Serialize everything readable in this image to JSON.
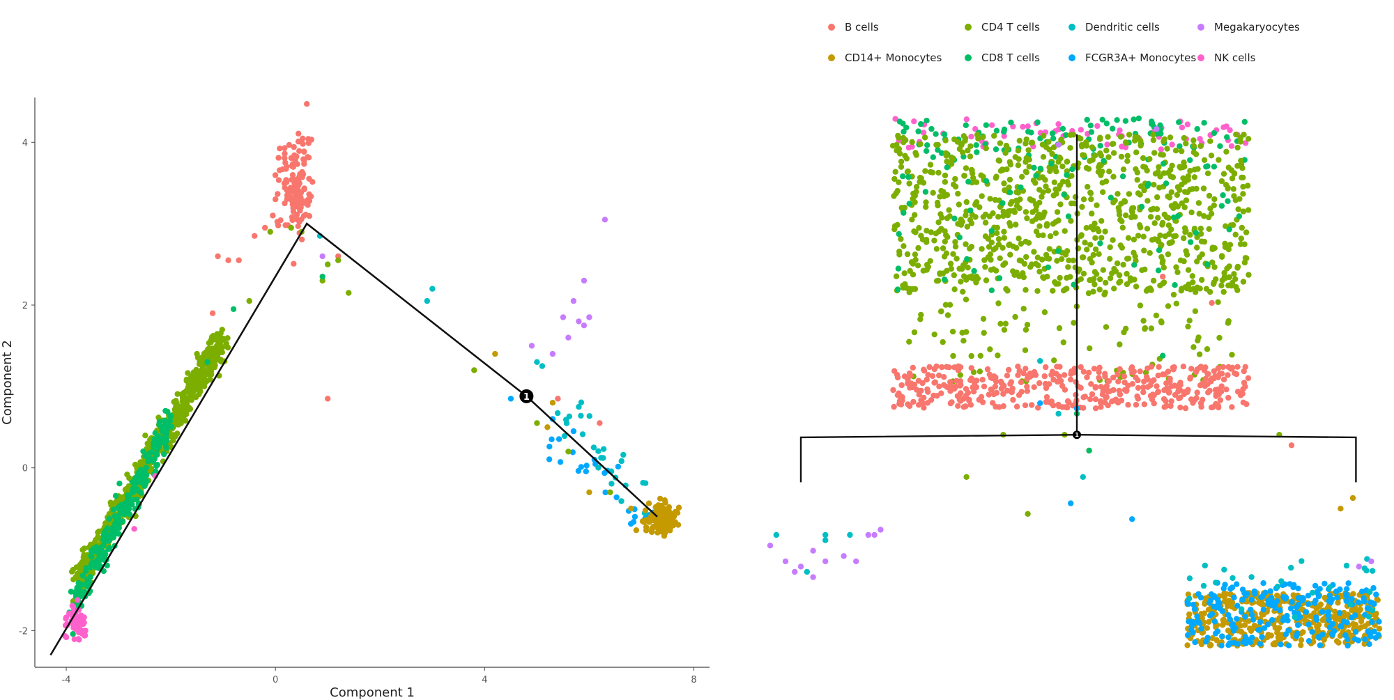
{
  "colors": {
    "B cells": "#F8766D",
    "CD14+ Monocytes": "#C49A00",
    "CD4 T cells": "#7CAE00",
    "CD8 T cells": "#00BE67",
    "Dendritic cells": "#00BFC4",
    "FCGR3A+ Monocytes": "#00A9FF",
    "Megakaryocytes": "#C77CFF",
    "NK cells": "#FF61CC"
  },
  "legend": {
    "items": [
      {
        "label": "B cells",
        "color": "#F8766D"
      },
      {
        "label": "CD14+ Monocytes",
        "color": "#C49A00"
      },
      {
        "label": "CD4 T cells",
        "color": "#7CAE00"
      },
      {
        "label": "CD8 T cells",
        "color": "#00BE67"
      },
      {
        "label": "Dendritic cells",
        "color": "#00BFC4"
      },
      {
        "label": "FCGR3A+ Monocytes",
        "color": "#00A9FF"
      },
      {
        "label": "Megakaryocytes",
        "color": "#C77CFF"
      },
      {
        "label": "NK cells",
        "color": "#FF61CC"
      }
    ]
  },
  "chart_data": [
    {
      "type": "scatter",
      "xlabel": "Component 1",
      "ylabel": "Component 2",
      "xlim": [
        -4.6,
        8.3
      ],
      "ylim": [
        -2.45,
        4.55
      ],
      "xticks": [
        -4,
        0,
        4,
        8
      ],
      "yticks": [
        -2,
        0,
        2,
        4
      ],
      "grid": false,
      "trajectory": [
        [
          -4.3,
          -2.3
        ],
        [
          0.6,
          3.0
        ],
        [
          4.8,
          0.88
        ],
        [
          7.3,
          -0.6
        ]
      ],
      "branch_points": [
        {
          "label": "1",
          "x": 4.8,
          "y": 0.88
        }
      ],
      "clusters": [
        {
          "name": "B cells",
          "cx": 0.4,
          "cy": 3.45,
          "sx": 0.15,
          "sy": 0.3,
          "n": 130
        },
        {
          "name": "CD14+ Monocytes",
          "cx": 7.35,
          "cy": -0.65,
          "sx": 0.15,
          "sy": 0.1,
          "n": 120
        },
        {
          "name": "NK cells",
          "cx": -3.8,
          "cy": -1.9,
          "sx": 0.1,
          "sy": 0.12,
          "n": 55
        }
      ],
      "paths": [
        {
          "name": "CD4 T cells",
          "from": [
            -3.8,
            -1.4
          ],
          "to": [
            -1.0,
            1.6
          ],
          "n": 700,
          "spread": 0.1
        },
        {
          "name": "CD8 T cells",
          "from": [
            -3.85,
            -1.7
          ],
          "to": [
            -2.0,
            0.6
          ],
          "n": 260,
          "spread": 0.1
        },
        {
          "name": "FCGR3A+ Monocytes",
          "from": [
            5.2,
            0.4
          ],
          "to": [
            7.3,
            -0.7
          ],
          "n": 30,
          "spread": 0.12
        },
        {
          "name": "Dendritic cells",
          "from": [
            5.4,
            0.7
          ],
          "to": [
            7.0,
            -0.3
          ],
          "n": 25,
          "spread": 0.15
        }
      ],
      "points": [
        {
          "name": "B cells",
          "xy": [
            [
              -0.2,
              2.95
            ],
            [
              -0.4,
              2.85
            ],
            [
              -0.7,
              2.55
            ],
            [
              -0.9,
              2.55
            ],
            [
              -1.1,
              2.6
            ],
            [
              -1.2,
              1.9
            ],
            [
              0.0,
              3.3
            ],
            [
              -0.05,
              3.1
            ],
            [
              1.0,
              0.85
            ],
            [
              1.2,
              2.6
            ],
            [
              5.4,
              0.85
            ],
            [
              6.2,
              0.55
            ]
          ]
        },
        {
          "name": "CD4 T cells",
          "xy": [
            [
              0.5,
              2.9
            ],
            [
              0.3,
              2.95
            ],
            [
              -0.1,
              2.9
            ],
            [
              1.0,
              2.5
            ],
            [
              1.2,
              2.55
            ],
            [
              1.4,
              2.15
            ],
            [
              0.9,
              2.3
            ],
            [
              3.8,
              1.2
            ],
            [
              5.0,
              0.55
            ],
            [
              5.6,
              0.2
            ],
            [
              6.4,
              -0.3
            ],
            [
              -0.5,
              2.05
            ],
            [
              -1.5,
              1.4
            ]
          ]
        },
        {
          "name": "CD8 T cells",
          "xy": [
            [
              0.9,
              2.35
            ],
            [
              -0.8,
              1.95
            ],
            [
              -1.3,
              1.3
            ]
          ]
        },
        {
          "name": "Dendritic cells",
          "xy": [
            [
              0.85,
              2.85
            ],
            [
              2.9,
              2.05
            ],
            [
              3.0,
              2.2
            ],
            [
              5.0,
              1.3
            ],
            [
              5.1,
              1.25
            ],
            [
              5.8,
              0.75
            ]
          ]
        },
        {
          "name": "Megakaryocytes",
          "xy": [
            [
              6.3,
              3.05
            ],
            [
              5.9,
              2.3
            ],
            [
              5.7,
              2.05
            ],
            [
              5.5,
              1.85
            ],
            [
              5.8,
              1.8
            ],
            [
              5.9,
              1.75
            ],
            [
              6.0,
              1.85
            ],
            [
              5.6,
              1.6
            ],
            [
              4.9,
              1.5
            ],
            [
              5.3,
              1.4
            ],
            [
              0.9,
              2.6
            ]
          ]
        },
        {
          "name": "CD14+ Monocytes",
          "xy": [
            [
              4.2,
              1.4
            ],
            [
              5.3,
              0.8
            ],
            [
              5.2,
              0.5
            ],
            [
              6.0,
              -0.3
            ],
            [
              6.8,
              -0.5
            ],
            [
              7.7,
              -0.7
            ]
          ]
        },
        {
          "name": "FCGR3A+ Monocytes",
          "xy": [
            [
              4.5,
              0.85
            ],
            [
              5.3,
              0.6
            ],
            [
              5.7,
              0.45
            ],
            [
              6.1,
              0.1
            ]
          ]
        },
        {
          "name": "NK cells",
          "xy": [
            [
              -2.3,
              -0.1
            ],
            [
              -2.7,
              -0.75
            ]
          ]
        }
      ]
    },
    {
      "type": "scatter",
      "tree": {
        "trunk_top_y": 0.03,
        "branch_node": {
          "x": 0.5,
          "y": 0.6,
          "label": "1"
        },
        "left_branch_x": 0.05,
        "right_branch_x": 0.955,
        "branch_bar_y": 0.605,
        "leaf_bottom_y": 0.69
      },
      "bands": [
        {
          "name": "NK cells",
          "x0": 0.2,
          "x1": 0.78,
          "y0": 0.0,
          "y1": 0.06,
          "n": 60
        },
        {
          "name": "CD8 T cells",
          "x0": 0.2,
          "x1": 0.78,
          "y0": 0.0,
          "y1": 0.08,
          "n": 90
        },
        {
          "name": "CD4 T cells",
          "x0": 0.2,
          "x1": 0.78,
          "y0": 0.03,
          "y1": 0.33,
          "n": 900
        },
        {
          "name": "CD8 T cells",
          "x0": 0.2,
          "x1": 0.78,
          "y0": 0.08,
          "y1": 0.33,
          "n": 60
        },
        {
          "name": "CD4 T cells",
          "x0": 0.22,
          "x1": 0.76,
          "y0": 0.33,
          "y1": 0.5,
          "n": 90
        },
        {
          "name": "B cells",
          "x0": 0.2,
          "x1": 0.78,
          "y0": 0.47,
          "y1": 0.55,
          "n": 420
        },
        {
          "name": "CD14+ Monocytes",
          "x0": 0.68,
          "x1": 0.995,
          "y0": 0.9,
          "y1": 1.0,
          "n": 420
        },
        {
          "name": "FCGR3A+ Monocytes",
          "x0": 0.68,
          "x1": 0.995,
          "y0": 0.88,
          "y1": 1.0,
          "n": 220
        },
        {
          "name": "Dendritic cells",
          "x0": 0.68,
          "x1": 0.99,
          "y0": 0.83,
          "y1": 0.95,
          "n": 25
        }
      ],
      "points": [
        {
          "name": "Megakaryocytes",
          "xy": [
            [
              0.0,
              0.81
            ],
            [
              0.04,
              0.86
            ],
            [
              0.05,
              0.85
            ],
            [
              0.07,
              0.82
            ],
            [
              0.09,
              0.84
            ],
            [
              0.12,
              0.83
            ],
            [
              0.16,
              0.79
            ],
            [
              0.17,
              0.79
            ],
            [
              0.07,
              0.87
            ],
            [
              0.18,
              0.78
            ],
            [
              0.14,
              0.84
            ],
            [
              0.025,
              0.84
            ],
            [
              0.63,
              0.02
            ],
            [
              0.47,
              0.05
            ],
            [
              0.98,
              0.84
            ],
            [
              0.96,
              0.85
            ]
          ]
        },
        {
          "name": "Dendritic cells",
          "xy": [
            [
              0.01,
              0.79
            ],
            [
              0.06,
              0.86
            ],
            [
              0.09,
              0.79
            ],
            [
              0.09,
              0.8
            ],
            [
              0.13,
              0.79
            ],
            [
              0.51,
              0.68
            ],
            [
              0.47,
              0.56
            ],
            [
              0.44,
              0.46
            ]
          ]
        },
        {
          "name": "FCGR3A+ Monocytes",
          "xy": [
            [
              0.49,
              0.73
            ],
            [
              0.59,
              0.76
            ],
            [
              0.44,
              0.54
            ],
            [
              0.5,
              0.55
            ]
          ]
        },
        {
          "name": "CD4 T cells",
          "xy": [
            [
              0.32,
              0.68
            ],
            [
              0.52,
              0.63
            ],
            [
              0.42,
              0.75
            ],
            [
              0.83,
              0.6
            ],
            [
              0.38,
              0.6
            ],
            [
              0.48,
              0.6
            ]
          ]
        },
        {
          "name": "CD14+ Monocytes",
          "xy": [
            [
              0.52,
              0.63
            ],
            [
              0.95,
              0.72
            ],
            [
              0.93,
              0.74
            ]
          ]
        },
        {
          "name": "CD8 T cells",
          "xy": [
            [
              0.52,
              0.63
            ],
            [
              0.64,
              0.45
            ],
            [
              0.5,
              0.56
            ]
          ]
        },
        {
          "name": "B cells",
          "xy": [
            [
              0.72,
              0.35
            ],
            [
              0.64,
              0.3
            ],
            [
              0.85,
              0.62
            ]
          ]
        }
      ]
    }
  ]
}
